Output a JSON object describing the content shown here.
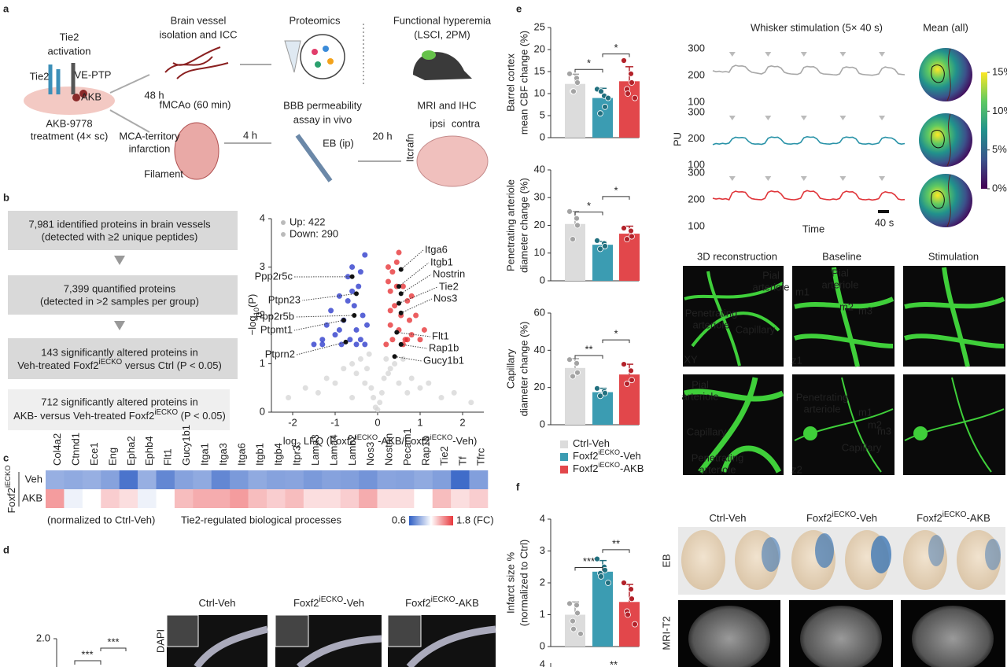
{
  "figure": {
    "panel_letters": [
      "a",
      "b",
      "c",
      "d",
      "e",
      "f"
    ],
    "a": {
      "tie2_activation": [
        "Tie2",
        "activation"
      ],
      "tie2": "Tie2",
      "ve_ptp": "VE-PTP",
      "akb": "AKB",
      "treatment": [
        "AKB-9778",
        "treatment (4× sc)"
      ],
      "h48": "48 h",
      "isolation": [
        "Brain vessel",
        "isolation and ICC"
      ],
      "fmcao": "fMCAo (60 min)",
      "infarction": [
        "MCA-territory",
        "infarction"
      ],
      "filament": "Filament",
      "proteomics": "Proteomics",
      "h4": "4 h",
      "bbb": [
        "BBB permeability",
        "assay in vivo"
      ],
      "eb": "EB (ip)",
      "h20": "20 h",
      "hyperemia": [
        "Functional hyperemia",
        "(LSCI, 2PM)"
      ],
      "mri": "MRI and IHC",
      "ipsi": "ipsi",
      "contra": "contra",
      "itcrafn": "Itcrafn"
    },
    "b": {
      "boxes": [
        [
          "7,981 identified proteins in brain vessels",
          "(detected with ≥2 unique peptides)"
        ],
        [
          "7,399 quantified proteins",
          "(detected in >2 samples per group)"
        ],
        [
          "143 significantly altered proteins in",
          [
            "Veh-treated Foxf2",
            "iECKO",
            " versus Ctrl (P < 0.05)"
          ]
        ],
        [
          "712 significantly altered proteins in",
          [
            "AKB- versus Veh-treated Foxf2",
            "iECKO",
            " (P < 0.05)"
          ]
        ]
      ]
    },
    "c": {
      "notes": [
        "(normalized to Ctrl-Veh)",
        "Tie2-regulated biological processes"
      ]
    },
    "d": {
      "titles": [
        [
          "Ctrl-Veh"
        ],
        [
          "Foxf2",
          "iECKO",
          "-Veh"
        ],
        [
          "Foxf2",
          "iECKO",
          "-AKB"
        ]
      ],
      "stain": "DAPI",
      "axis_label": "2.0",
      "sig": [
        "***",
        "***"
      ]
    },
    "e": {
      "legend": [
        [
          "Ctrl-Veh"
        ],
        [
          "Foxf2",
          "iECKO",
          "-Veh"
        ],
        [
          "Foxf2",
          "iECKO",
          "-AKB"
        ]
      ],
      "micro_titles": [
        "3D reconstruction",
        "Baseline",
        "Stimulation"
      ],
      "micro_labels": [
        "Pial",
        "arteriole",
        "Penetrating",
        "arteriole",
        "Capillary",
        "XY",
        "Pial",
        "arteriole",
        "m1",
        "m2",
        "m3",
        "z1",
        "Pial",
        "arteriole",
        "Capillary",
        "Penetrating",
        "arteriole",
        "Penetrating",
        "arteriole",
        "m1",
        "m2",
        "m3",
        "Capillary",
        "z2"
      ]
    },
    "f": {
      "titles": [
        [
          "Ctrl-Veh"
        ],
        [
          "Foxf2",
          "iECKO",
          "-Veh"
        ],
        [
          "Foxf2",
          "iECKO",
          "-AKB"
        ]
      ],
      "rows": [
        "EB",
        "MRI-T2"
      ],
      "cut": [
        "4",
        "**"
      ]
    }
  },
  "chart_data": [
    {
      "type": "scatter",
      "ylabel": [
        "−log",
        "10",
        "(P)"
      ],
      "xlabel": [
        "log",
        "2",
        " LFQ (Foxf2",
        "iECKO",
        "-AKB/Foxf2",
        "iECKO",
        "-Veh)"
      ],
      "xlim": [
        -2.5,
        2.5
      ],
      "ylim": [
        0,
        4
      ],
      "xticks": [
        -2,
        -1,
        0,
        1,
        2
      ],
      "yticks": [
        0,
        1,
        2,
        3,
        4
      ],
      "series": [
        {
          "color": "#d4d4d4",
          "x": [
            -2.1,
            -1.7,
            -1.4,
            -1.2,
            -1.0,
            -0.8,
            -0.6,
            -0.5,
            -0.4,
            -0.3,
            -0.2,
            -0.15,
            -0.1,
            -0.05,
            0,
            0.05,
            0.1,
            0.15,
            0.2,
            0.3,
            0.4,
            0.5,
            0.6,
            0.8,
            1.0,
            1.2,
            1.5,
            1.8,
            2.2,
            -0.25,
            0.25,
            -0.6,
            0.7
          ],
          "values": [
            0.3,
            0.5,
            0.4,
            0.7,
            0.6,
            0.9,
            1.0,
            0.8,
            1.1,
            0.6,
            1.2,
            0.5,
            0.3,
            0.1,
            0.05,
            0.2,
            0.4,
            0.7,
            1.1,
            0.9,
            1.0,
            0.6,
            1.1,
            0.7,
            0.5,
            0.6,
            0.3,
            0.4,
            0.2,
            0.9,
            0.8,
            0.3,
            0.4
          ]
        },
        {
          "name": "Up: 422",
          "color": "#e5282b",
          "x": [
            0.2,
            0.25,
            0.3,
            0.3,
            0.35,
            0.4,
            0.45,
            0.5,
            0.55,
            0.6,
            0.65,
            0.7,
            0.75,
            0.8,
            0.9,
            1.0,
            1.1,
            0.25,
            0.35,
            0.5,
            0.6,
            0.8,
            0.3,
            0.45,
            0.7
          ],
          "values": [
            1.4,
            3.0,
            1.8,
            2.5,
            1.5,
            2.2,
            3.1,
            1.7,
            2.0,
            2.6,
            1.5,
            2.3,
            1.9,
            1.6,
            2.0,
            1.5,
            1.7,
            2.7,
            2.9,
            3.3,
            1.4,
            2.4,
            2.1,
            2.6,
            1.5
          ]
        },
        {
          "name": "Down: 290",
          "color": "#2230c8",
          "x": [
            -1.5,
            -1.3,
            -1.2,
            -1.1,
            -1.0,
            -0.9,
            -0.85,
            -0.8,
            -0.7,
            -0.65,
            -0.6,
            -0.55,
            -0.5,
            -0.45,
            -0.4,
            -0.35,
            -0.3,
            -0.3,
            -0.25,
            -0.7,
            -0.9,
            -0.5,
            -0.4,
            -1.3,
            -0.6
          ],
          "values": [
            1.4,
            1.5,
            1.8,
            2.1,
            1.6,
            2.4,
            1.4,
            1.9,
            2.8,
            1.5,
            3.0,
            2.2,
            1.7,
            2.6,
            1.5,
            2.0,
            1.4,
            3.25,
            1.8,
            2.3,
            1.7,
            1.4,
            2.9,
            1.4,
            2.5
          ]
        },
        {
          "color": "#111111",
          "labels": [
            "Ppp2r5c",
            "Ptpn23",
            "Ppp2r5b",
            "Ptpmt1",
            "Ptprn2",
            "Itga6",
            "Itgb1",
            "Nostrin",
            "Tie2",
            "Nos3",
            "Flt1",
            "Rap1b",
            "Gucy1b1"
          ],
          "x": [
            -0.6,
            -0.5,
            -0.55,
            -0.8,
            -0.75,
            0.55,
            0.5,
            0.55,
            0.5,
            0.55,
            0.45,
            0.55,
            0.4
          ],
          "values": [
            2.8,
            2.45,
            2.0,
            1.9,
            1.45,
            2.95,
            2.6,
            2.45,
            2.25,
            2.05,
            1.65,
            1.4,
            1.15
          ]
        }
      ]
    },
    {
      "type": "heatmap",
      "ylabel": [
        "Foxf2",
        "iECKO"
      ],
      "x": [
        "Col4a2",
        "Ctnnd1",
        "Ece1",
        "Eng",
        "Epha2",
        "Ephb4",
        "Flt1",
        "Gucy1b1",
        "Itga1",
        "Itga3",
        "Itga6",
        "Itgb1",
        "Itgb4",
        "Itpr3",
        "Lama3",
        "Lama4",
        "Lamb2",
        "Nos3",
        "Nostrin",
        "Pecam1",
        "Rap1b",
        "Tie2",
        "Tf",
        "Tfrc"
      ],
      "y": [
        "Veh",
        "AKB"
      ],
      "values": [
        [
          0.9,
          0.88,
          0.9,
          0.85,
          0.68,
          0.9,
          0.75,
          0.85,
          0.88,
          0.75,
          0.82,
          0.88,
          0.85,
          0.86,
          0.82,
          0.85,
          0.84,
          0.8,
          0.86,
          0.85,
          0.88,
          0.84,
          0.65,
          0.84
        ],
        [
          1.5,
          1.15,
          1.2,
          1.35,
          1.3,
          1.15,
          1.2,
          1.4,
          1.45,
          1.45,
          1.5,
          1.4,
          1.35,
          1.4,
          1.3,
          1.3,
          1.35,
          1.45,
          1.3,
          1.3,
          1.2,
          1.4,
          1.3,
          1.35
        ]
      ],
      "clim": [
        0.6,
        1.8
      ],
      "colors": [
        "#2f5fc4",
        "#ffffff",
        "#e8383d"
      ],
      "cticks": [
        0.6,
        {
          "value": 1.8,
          "label": "1.8 (FC)"
        }
      ]
    },
    {
      "type": "bar",
      "ylabel": [
        "Barrel cortex",
        "mean CBF change (%)"
      ],
      "ylim": [
        0,
        25
      ],
      "yticks": [
        0,
        5,
        10,
        15,
        20,
        25
      ],
      "series": [
        {
          "color": "#dcdcdc",
          "point_color": "#a3a3a3",
          "values": [
            12.2
          ],
          "errors": [
            2.2
          ],
          "points": [
            14.5,
            13.5,
            12.5,
            10.5,
            10.5
          ]
        },
        {
          "color": "#3b9cb2",
          "point_color": "#22707f",
          "values": [
            9
          ],
          "errors": [
            2.2
          ],
          "points": [
            11,
            9.5,
            7,
            5.5,
            10.5,
            9
          ]
        },
        {
          "color": "#e2474b",
          "point_color": "#b3222a",
          "values": [
            12.8
          ],
          "errors": [
            3.3
          ],
          "points": [
            17.5,
            14.5,
            12.5,
            11,
            10,
            9
          ]
        }
      ],
      "significance": [
        "*",
        "*"
      ]
    },
    {
      "type": "bar",
      "ylabel": [
        "Penetrating arteriole",
        "diameter change (%)"
      ],
      "ylim": [
        0,
        40
      ],
      "yticks": [
        0,
        10,
        20,
        30,
        40
      ],
      "series": [
        {
          "color": "#dcdcdc",
          "point_color": "#a3a3a3",
          "values": [
            20.5
          ],
          "errors": [
            4.5
          ],
          "points": [
            25,
            22.5,
            20,
            15
          ]
        },
        {
          "color": "#3b9cb2",
          "point_color": "#22707f",
          "values": [
            13
          ],
          "errors": [
            1.2
          ],
          "points": [
            14.5,
            13.5,
            12.5,
            11.5
          ]
        },
        {
          "color": "#e2474b",
          "point_color": "#b3222a",
          "values": [
            17
          ],
          "errors": [
            2.7
          ],
          "points": [
            19,
            18,
            16,
            15
          ]
        }
      ],
      "significance": [
        "*",
        "*"
      ]
    },
    {
      "type": "bar",
      "ylabel": [
        "Capillary",
        "diameter change (%)"
      ],
      "ylim": [
        0,
        60
      ],
      "yticks": [
        0,
        20,
        40,
        60
      ],
      "series": [
        {
          "color": "#dcdcdc",
          "point_color": "#a3a3a3",
          "values": [
            30.5
          ],
          "errors": [
            5
          ],
          "points": [
            35,
            33,
            28,
            26
          ]
        },
        {
          "color": "#3b9cb2",
          "point_color": "#22707f",
          "values": [
            17.5
          ],
          "errors": [
            2.1
          ],
          "points": [
            19.5,
            18,
            17,
            15.5
          ]
        },
        {
          "color": "#e2474b",
          "point_color": "#b3222a",
          "values": [
            27
          ],
          "errors": [
            5.5
          ],
          "points": [
            32.5,
            29,
            24,
            22
          ]
        }
      ],
      "significance": [
        "**",
        "*"
      ]
    },
    {
      "type": "line",
      "title": "Whisker stimulation (5× 40 s)",
      "ylabel": "PU",
      "xlabel": "Time",
      "scale_label": "40 s",
      "ylim": [
        100,
        300
      ],
      "yticks": [
        100,
        200,
        300
      ],
      "series": [
        {
          "color": "#a8a8a8",
          "values": [
            218,
            214,
            216,
            213,
            215,
            212,
            232,
            238,
            235,
            236,
            233,
            220,
            212,
            210,
            208,
            206,
            212,
            232,
            236,
            233,
            234,
            228,
            212,
            208,
            206,
            205,
            204,
            209,
            230,
            234,
            232,
            233,
            226,
            210,
            206,
            205,
            204,
            203,
            202,
            206,
            228,
            232,
            230,
            231,
            226,
            208,
            204,
            203,
            202,
            201,
            203,
            206,
            226,
            232,
            229,
            228,
            222,
            206,
            204,
            203
          ]
        },
        {
          "color": "#2a93a8",
          "values": [
            178,
            182,
            180,
            183,
            181,
            184,
            200,
            206,
            204,
            205,
            203,
            190,
            182,
            180,
            181,
            179,
            183,
            202,
            207,
            205,
            206,
            198,
            184,
            181,
            180,
            182,
            181,
            186,
            204,
            208,
            206,
            207,
            200,
            185,
            182,
            181,
            180,
            183,
            182,
            186,
            203,
            207,
            205,
            206,
            200,
            184,
            181,
            180,
            182,
            179,
            181,
            184,
            202,
            206,
            204,
            203,
            196,
            183,
            180,
            182
          ]
        },
        {
          "color": "#e0363b",
          "values": [
            206,
            203,
            205,
            202,
            204,
            200,
            226,
            232,
            229,
            230,
            228,
            212,
            204,
            202,
            201,
            200,
            205,
            228,
            233,
            230,
            231,
            222,
            206,
            203,
            201,
            200,
            202,
            206,
            229,
            234,
            231,
            232,
            224,
            206,
            203,
            201,
            200,
            203,
            201,
            205,
            226,
            232,
            229,
            230,
            222,
            204,
            201,
            200,
            202,
            199,
            201,
            204,
            224,
            230,
            227,
            226,
            218,
            203,
            200,
            201
          ]
        }
      ]
    },
    {
      "type": "colorbar",
      "title": "Mean (all)",
      "lim": [
        0,
        15
      ],
      "colors": [
        "#440154",
        "#3b528b",
        "#21918c",
        "#5ec962",
        "#fde725"
      ],
      "ticks": [
        {
          "value": 15,
          "label": "15%"
        },
        {
          "value": 10,
          "label": "10%"
        },
        {
          "value": 5,
          "label": "5%"
        },
        {
          "value": 0,
          "label": "0%"
        }
      ]
    },
    {
      "type": "bar",
      "ylabel": [
        "Infarct size %",
        "(normalized to Ctrl)"
      ],
      "ylim": [
        0,
        4
      ],
      "yticks": [
        0,
        1,
        2,
        3,
        4
      ],
      "series": [
        {
          "color": "#dcdcdc",
          "point_color": "#a3a3a3",
          "values": [
            1.0
          ],
          "errors": [
            0.4
          ],
          "points": [
            1.35,
            1.3,
            1.05,
            0.8,
            0.55,
            0.4
          ]
        },
        {
          "color": "#3b9cb2",
          "point_color": "#22707f",
          "values": [
            2.35
          ],
          "errors": [
            0.35
          ],
          "points": [
            2.75,
            2.5,
            2.4,
            2.3,
            2.2,
            2.0
          ]
        },
        {
          "color": "#e2474b",
          "point_color": "#b3222a",
          "values": [
            1.4
          ],
          "errors": [
            0.55
          ],
          "points": [
            2.0,
            1.8,
            1.5,
            1.1,
            1.0,
            0.7
          ]
        }
      ],
      "significance": [
        "***",
        "**"
      ]
    }
  ]
}
